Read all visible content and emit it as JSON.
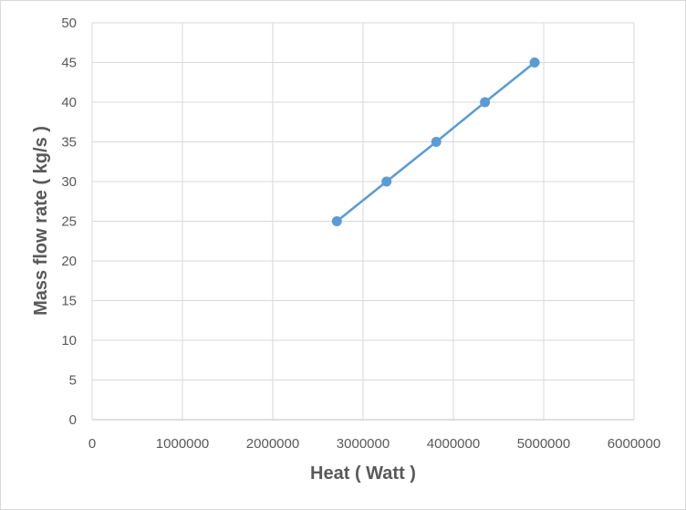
{
  "chart_data": {
    "type": "scatter",
    "xlabel": "Heat ( Watt )",
    "ylabel": "Mass flow rate ( kg/s )",
    "xlim": [
      0,
      6000000
    ],
    "ylim": [
      0,
      50
    ],
    "x_ticks": [
      "0",
      "1000000",
      "2000000",
      "3000000",
      "4000000",
      "5000000",
      "6000000"
    ],
    "y_ticks": [
      "0",
      "5",
      "10",
      "15",
      "20",
      "25",
      "30",
      "35",
      "40",
      "45",
      "50"
    ],
    "grid": true,
    "legend": "none",
    "series": [
      {
        "color": "#5b9bd5",
        "marker": "circle",
        "line": "straight",
        "x": [
          2710000,
          3260000,
          3810000,
          4350000,
          4900000
        ],
        "y": [
          25,
          30,
          35,
          40,
          45
        ]
      }
    ]
  }
}
